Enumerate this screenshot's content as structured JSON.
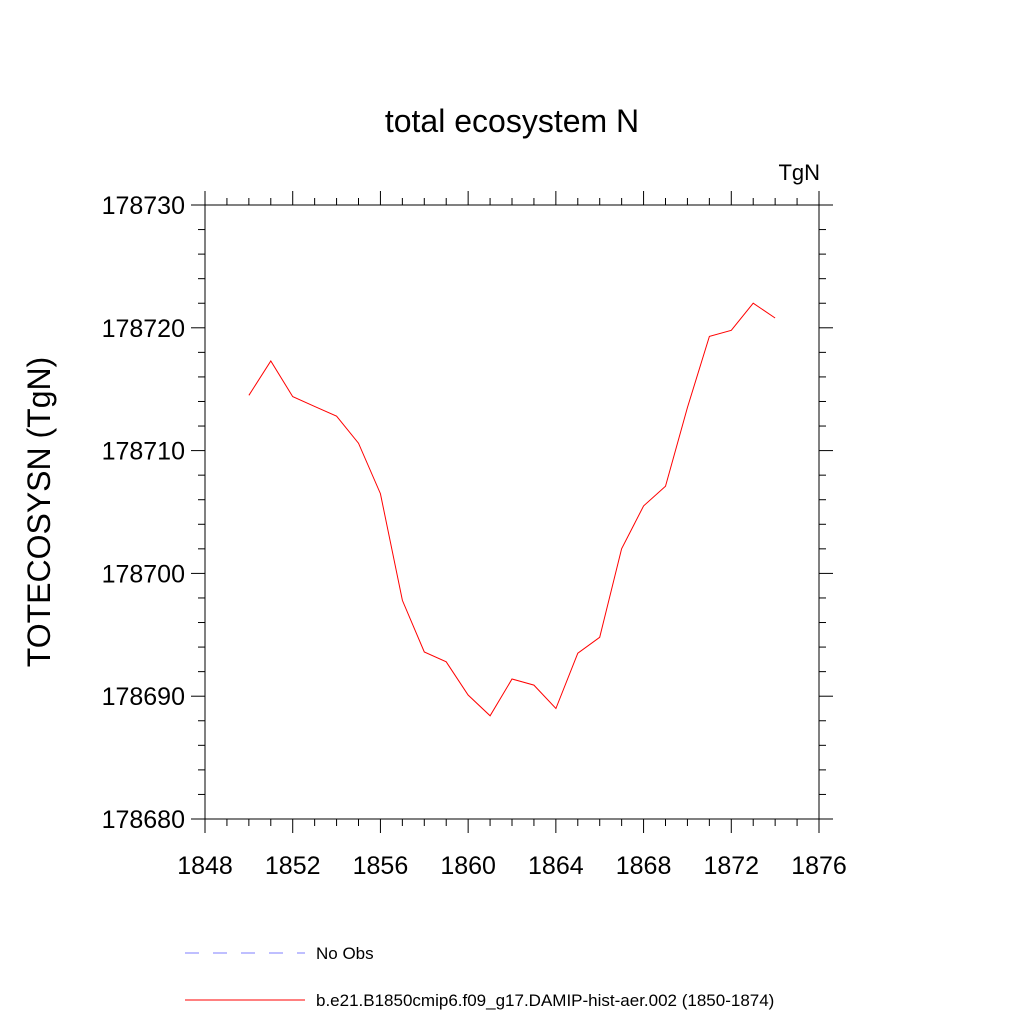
{
  "chart_data": {
    "type": "line",
    "title": "total ecosystem N",
    "units": "TgN",
    "xlabel": "",
    "ylabel": "TOTECOSYSN  (TgN)",
    "xlim": [
      1848,
      1876
    ],
    "ylim": [
      178680,
      178730
    ],
    "x_ticks": [
      1848,
      1852,
      1856,
      1860,
      1864,
      1868,
      1872,
      1876
    ],
    "x_tick_labels": [
      "1848",
      "1852",
      "1856",
      "1860",
      "1864",
      "1868",
      "1872",
      "1876"
    ],
    "y_ticks": [
      178680,
      178690,
      178700,
      178710,
      178720,
      178730
    ],
    "y_tick_labels": [
      "178680",
      "178690",
      "178700",
      "178710",
      "178720",
      "178730"
    ],
    "grid": false,
    "legend_position": "bottom",
    "series": [
      {
        "name": "No Obs",
        "color": "#7f7fff",
        "style": "dashed",
        "x": [],
        "y": []
      },
      {
        "name": "b.e21.B1850cmip6.f09_g17.DAMIP-hist-aer.002 (1850-1874)",
        "color": "#ff0000",
        "style": "solid",
        "x": [
          1850,
          1851,
          1852,
          1853,
          1854,
          1855,
          1856,
          1857,
          1858,
          1859,
          1860,
          1861,
          1862,
          1863,
          1864,
          1865,
          1866,
          1867,
          1868,
          1869,
          1870,
          1871,
          1872,
          1873,
          1874
        ],
        "y": [
          178714.5,
          178717.3,
          178714.4,
          178713.6,
          178712.8,
          178710.6,
          178706.5,
          178697.8,
          178693.6,
          178692.8,
          178690.1,
          178688.4,
          178691.4,
          178690.9,
          178689.0,
          178693.5,
          178694.8,
          178702.0,
          178705.5,
          178707.1,
          178713.5,
          178719.3,
          178719.8,
          178722.0,
          178720.8
        ]
      }
    ]
  }
}
